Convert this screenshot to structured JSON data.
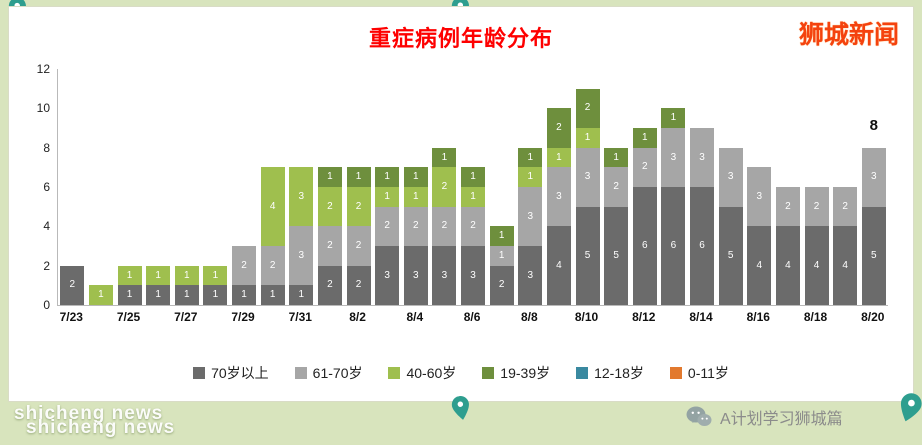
{
  "page": {
    "brand": "狮城新闻",
    "watermark": "shicheng news",
    "footer_account": "A计划学习狮城篇"
  },
  "chart_data": {
    "type": "bar",
    "stacked": true,
    "title": "重症病例年龄分布",
    "xlabel": "",
    "ylabel": "",
    "ylim": [
      0,
      12
    ],
    "yticks": [
      0,
      2,
      4,
      6,
      8,
      10,
      12
    ],
    "grid": false,
    "legend_position": "bottom",
    "categories": [
      "7/23",
      "7/24",
      "7/25",
      "7/26",
      "7/27",
      "7/28",
      "7/29",
      "7/30",
      "7/31",
      "8/1",
      "8/2",
      "8/3",
      "8/4",
      "8/5",
      "8/6",
      "8/7",
      "8/8",
      "8/9",
      "8/10",
      "8/11",
      "8/12",
      "8/13",
      "8/14",
      "8/15",
      "8/16",
      "8/17",
      "8/18",
      "8/19",
      "8/20"
    ],
    "xtick_labels": [
      "7/23",
      "7/25",
      "7/27",
      "7/29",
      "7/31",
      "8/2",
      "8/4",
      "8/6",
      "8/8",
      "8/10",
      "8/12",
      "8/14",
      "8/16",
      "8/18",
      "8/20"
    ],
    "series": [
      {
        "name": "70岁以上",
        "color": "#6b6b6b",
        "values": [
          2,
          0,
          1,
          1,
          1,
          1,
          1,
          1,
          1,
          2,
          2,
          3,
          3,
          3,
          3,
          2,
          3,
          4,
          5,
          5,
          6,
          6,
          6,
          5,
          4,
          4,
          4,
          4,
          5
        ]
      },
      {
        "name": "61-70岁",
        "color": "#a6a6a6",
        "values": [
          0,
          0,
          0,
          0,
          0,
          0,
          2,
          2,
          3,
          2,
          2,
          2,
          2,
          2,
          2,
          1,
          3,
          3,
          3,
          2,
          2,
          3,
          3,
          3,
          3,
          2,
          2,
          2,
          3
        ]
      },
      {
        "name": "40-60岁",
        "color": "#9fbf4e",
        "values": [
          0,
          1,
          1,
          1,
          1,
          1,
          0,
          4,
          3,
          2,
          2,
          1,
          1,
          2,
          1,
          0,
          1,
          1,
          1,
          0,
          0,
          0,
          0,
          0,
          0,
          0,
          0,
          0,
          0
        ]
      },
      {
        "name": "19-39岁",
        "color": "#6e8f3d",
        "values": [
          0,
          0,
          0,
          0,
          0,
          0,
          0,
          0,
          0,
          1,
          1,
          1,
          1,
          1,
          1,
          1,
          1,
          2,
          2,
          1,
          1,
          1,
          0,
          0,
          0,
          0,
          0,
          0,
          0
        ]
      },
      {
        "name": "12-18岁",
        "color": "#3a89a0",
        "values": [
          0,
          0,
          0,
          0,
          0,
          0,
          0,
          0,
          0,
          0,
          0,
          0,
          0,
          0,
          0,
          0,
          0,
          0,
          0,
          0,
          0,
          0,
          0,
          0,
          0,
          0,
          0,
          0,
          0
        ]
      },
      {
        "name": "0-11岁",
        "color": "#e2792e",
        "values": [
          0,
          0,
          0,
          0,
          0,
          0,
          0,
          0,
          0,
          0,
          0,
          0,
          0,
          0,
          0,
          0,
          0,
          0,
          0,
          0,
          0,
          0,
          0,
          0,
          0,
          0,
          0,
          0,
          0
        ]
      }
    ],
    "annotation": {
      "category": "8/20",
      "text": "8"
    }
  }
}
